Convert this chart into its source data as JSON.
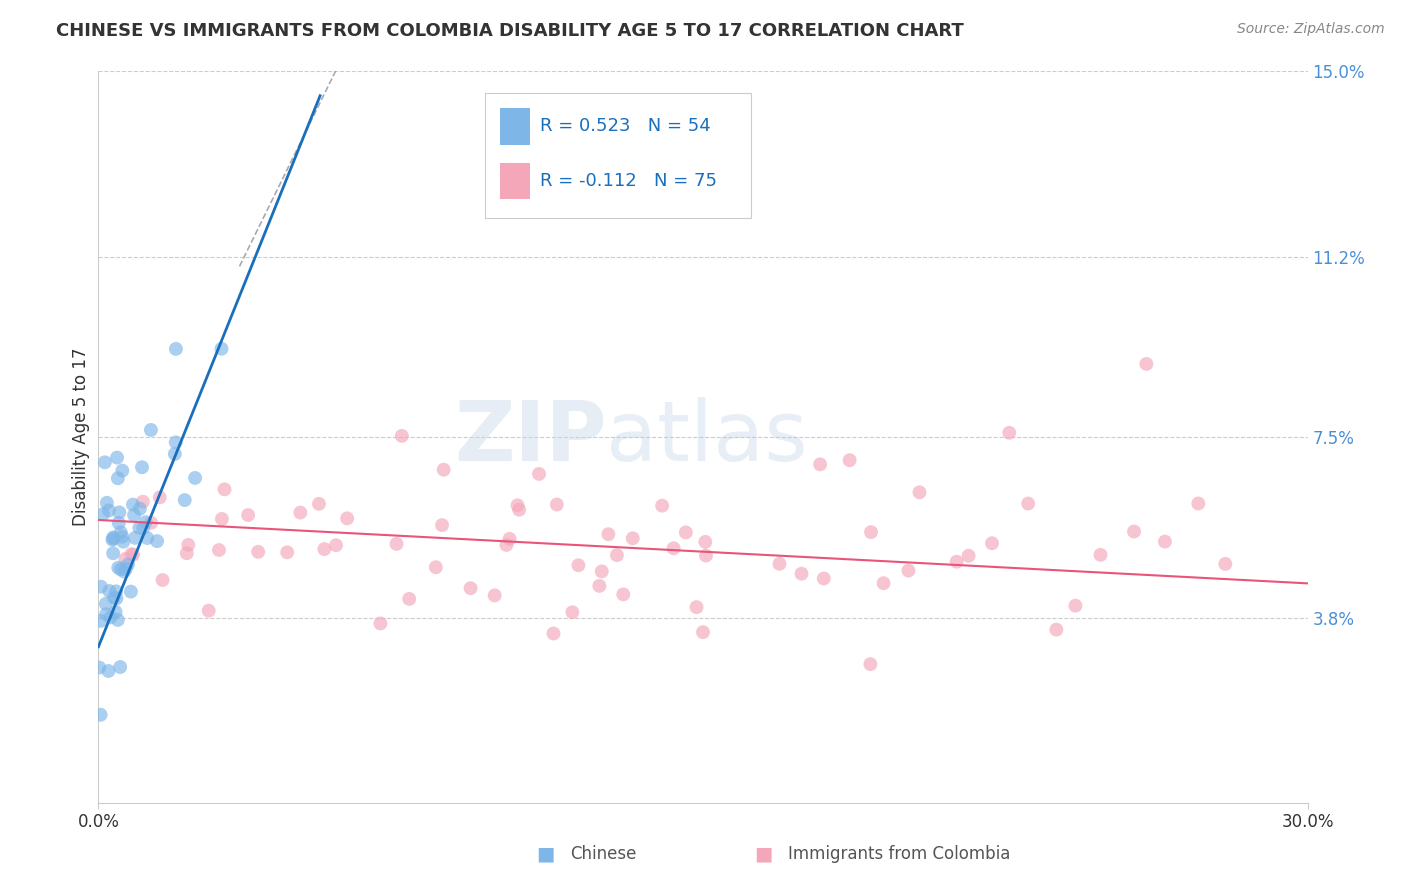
{
  "title": "CHINESE VS IMMIGRANTS FROM COLOMBIA DISABILITY AGE 5 TO 17 CORRELATION CHART",
  "source": "Source: ZipAtlas.com",
  "ylabel": "Disability Age 5 to 17",
  "xlim": [
    0.0,
    30.0
  ],
  "ylim": [
    0.0,
    15.0
  ],
  "xtick_labels": [
    "0.0%",
    "30.0%"
  ],
  "yticks": [
    3.8,
    7.5,
    11.2,
    15.0
  ],
  "ytick_labels": [
    "3.8%",
    "7.5%",
    "11.2%",
    "15.0%"
  ],
  "grid_color": "#cccccc",
  "background_color": "#ffffff",
  "chinese_color": "#7eb6e8",
  "colombia_color": "#f4a7b9",
  "chinese_line_color": "#1a6fbd",
  "colombia_line_color": "#e8547a",
  "chinese_R": 0.523,
  "chinese_N": 54,
  "colombia_R": -0.112,
  "colombia_N": 75,
  "legend_text_color": "#1a6fbd",
  "title_color": "#333333",
  "source_color": "#888888",
  "ylabel_color": "#333333"
}
